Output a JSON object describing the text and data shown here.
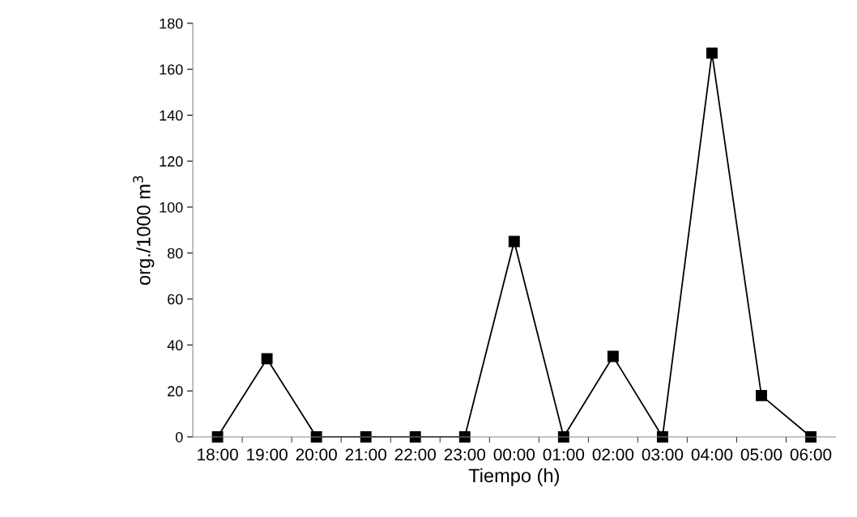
{
  "chart_data": {
    "type": "line",
    "xlabel": "Tiempo (h)",
    "ylabel": "org./1000 m$^{3}$",
    "categories": [
      "18:00",
      "19:00",
      "20:00",
      "21:00",
      "22:00",
      "23:00",
      "00:00",
      "01:00",
      "02:00",
      "03:00",
      "04:00",
      "05:00",
      "06:00"
    ],
    "series": [
      {
        "color": "#000000",
        "values": [
          0,
          34,
          0,
          0,
          0,
          0,
          85,
          0,
          35,
          0,
          167,
          18,
          0
        ]
      }
    ],
    "ylim": [
      0,
      180
    ],
    "yticks": [
      0,
      20,
      40,
      60,
      80,
      100,
      120,
      140,
      160,
      180
    ],
    "marker": "square",
    "line_style": "solid",
    "grid": false,
    "legend": false
  }
}
